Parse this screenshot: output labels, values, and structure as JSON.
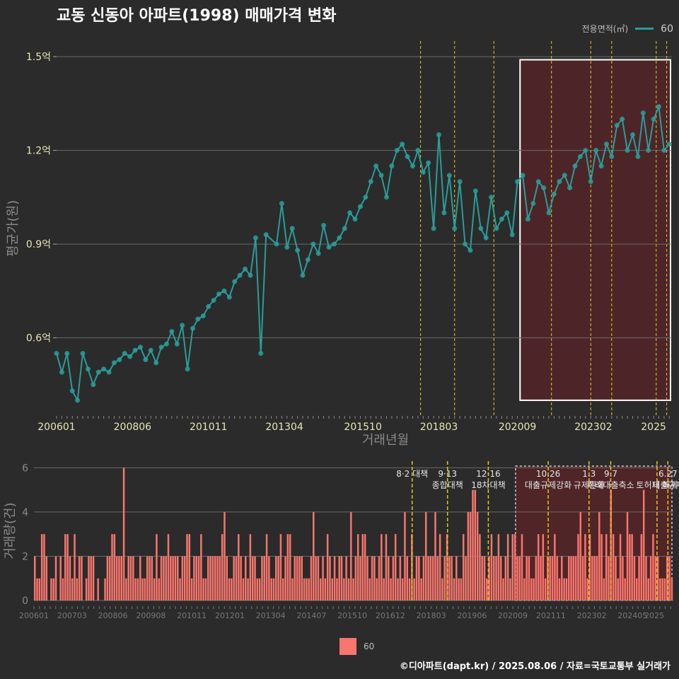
{
  "title": "교동 신동아 아파트(1998) 매매가격 변화",
  "legend_top": {
    "title": "전용면적(㎡)",
    "label": "60"
  },
  "legend_bottom": {
    "label": "60"
  },
  "caption": "©디아파트(dapt.kr) / 2025.08.06 / 자료=국토교통부 실거래가",
  "colors": {
    "background": "#2b2b2b",
    "line": "#2a9d9a",
    "bar": "#f8766d",
    "highlight": "#5a2428",
    "event_line": "#e6c619",
    "grid": "#6a6a6a"
  },
  "chart_data": [
    {
      "type": "line",
      "ylabel": "평균가(원)",
      "xlabel": "거래년월",
      "y_ticks": [
        {
          "v": 0.6,
          "label": "0.6억"
        },
        {
          "v": 0.9,
          "label": "0.9억"
        },
        {
          "v": 1.2,
          "label": "1.2억"
        },
        {
          "v": 1.5,
          "label": "1.5억"
        }
      ],
      "x_tick_labels": [
        "200601",
        "200806",
        "201011",
        "201304",
        "201510",
        "201803",
        "202009",
        "202302",
        "2025"
      ],
      "ylim": [
        0.35,
        1.55
      ],
      "xlim": [
        "2006-01",
        "2025-08"
      ],
      "highlight_period": {
        "start": "2020-10",
        "end": "2025-08",
        "y_min": 0.4,
        "y_max": 1.49
      },
      "event_dates": [
        "2017-08",
        "2018-09",
        "2019-12",
        "2021-10",
        "2023-01",
        "2023-09",
        "2025-02",
        "2025-06"
      ],
      "series": [
        {
          "name": "60",
          "points": [
            [
              "2006-01",
              0.55
            ],
            [
              "2006-03",
              0.49
            ],
            [
              "2006-05",
              0.55
            ],
            [
              "2006-07",
              0.43
            ],
            [
              "2006-09",
              0.4
            ],
            [
              "2006-11",
              0.55
            ],
            [
              "2007-01",
              0.5
            ],
            [
              "2007-03",
              0.45
            ],
            [
              "2007-05",
              0.49
            ],
            [
              "2007-07",
              0.5
            ],
            [
              "2007-09",
              0.49
            ],
            [
              "2007-11",
              0.52
            ],
            [
              "2008-01",
              0.53
            ],
            [
              "2008-03",
              0.55
            ],
            [
              "2008-05",
              0.54
            ],
            [
              "2008-07",
              0.56
            ],
            [
              "2008-09",
              0.57
            ],
            [
              "2008-11",
              0.53
            ],
            [
              "2009-01",
              0.56
            ],
            [
              "2009-03",
              0.52
            ],
            [
              "2009-05",
              0.57
            ],
            [
              "2009-07",
              0.58
            ],
            [
              "2009-09",
              0.62
            ],
            [
              "2009-11",
              0.58
            ],
            [
              "2010-01",
              0.64
            ],
            [
              "2010-03",
              0.5
            ],
            [
              "2010-05",
              0.63
            ],
            [
              "2010-07",
              0.66
            ],
            [
              "2010-09",
              0.67
            ],
            [
              "2010-11",
              0.7
            ],
            [
              "2011-01",
              0.72
            ],
            [
              "2011-03",
              0.74
            ],
            [
              "2011-05",
              0.75
            ],
            [
              "2011-07",
              0.73
            ],
            [
              "2011-09",
              0.78
            ],
            [
              "2011-11",
              0.8
            ],
            [
              "2012-01",
              0.82
            ],
            [
              "2012-03",
              0.8
            ],
            [
              "2012-05",
              0.92
            ],
            [
              "2012-07",
              0.55
            ],
            [
              "2012-09",
              0.93
            ],
            [
              "2013-01",
              0.9
            ],
            [
              "2013-03",
              1.03
            ],
            [
              "2013-05",
              0.89
            ],
            [
              "2013-07",
              0.95
            ],
            [
              "2013-09",
              0.88
            ],
            [
              "2013-11",
              0.8
            ],
            [
              "2014-01",
              0.85
            ],
            [
              "2014-03",
              0.9
            ],
            [
              "2014-05",
              0.87
            ],
            [
              "2014-07",
              0.96
            ],
            [
              "2014-09",
              0.89
            ],
            [
              "2014-11",
              0.9
            ],
            [
              "2015-01",
              0.92
            ],
            [
              "2015-03",
              0.95
            ],
            [
              "2015-05",
              1.0
            ],
            [
              "2015-07",
              0.98
            ],
            [
              "2015-09",
              1.02
            ],
            [
              "2015-11",
              1.05
            ],
            [
              "2016-01",
              1.1
            ],
            [
              "2016-03",
              1.15
            ],
            [
              "2016-05",
              1.12
            ],
            [
              "2016-07",
              1.05
            ],
            [
              "2016-09",
              1.15
            ],
            [
              "2016-11",
              1.2
            ],
            [
              "2017-01",
              1.22
            ],
            [
              "2017-03",
              1.18
            ],
            [
              "2017-05",
              1.15
            ],
            [
              "2017-07",
              1.2
            ],
            [
              "2017-09",
              1.13
            ],
            [
              "2017-11",
              1.16
            ],
            [
              "2018-01",
              0.95
            ],
            [
              "2018-03",
              1.25
            ],
            [
              "2018-05",
              1.0
            ],
            [
              "2018-07",
              1.12
            ],
            [
              "2018-09",
              0.95
            ],
            [
              "2018-11",
              1.1
            ],
            [
              "2019-01",
              0.9
            ],
            [
              "2019-03",
              0.88
            ],
            [
              "2019-05",
              1.07
            ],
            [
              "2019-07",
              0.95
            ],
            [
              "2019-09",
              0.92
            ],
            [
              "2019-11",
              1.05
            ],
            [
              "2020-01",
              0.95
            ],
            [
              "2020-03",
              0.98
            ],
            [
              "2020-05",
              1.0
            ],
            [
              "2020-07",
              0.93
            ],
            [
              "2020-09",
              1.1
            ],
            [
              "2020-11",
              1.12
            ],
            [
              "2021-01",
              0.98
            ],
            [
              "2021-03",
              1.03
            ],
            [
              "2021-05",
              1.1
            ],
            [
              "2021-07",
              1.08
            ],
            [
              "2021-09",
              1.0
            ],
            [
              "2021-11",
              1.06
            ],
            [
              "2022-01",
              1.1
            ],
            [
              "2022-03",
              1.12
            ],
            [
              "2022-05",
              1.08
            ],
            [
              "2022-07",
              1.15
            ],
            [
              "2022-09",
              1.18
            ],
            [
              "2022-11",
              1.2
            ],
            [
              "2023-01",
              1.1
            ],
            [
              "2023-03",
              1.2
            ],
            [
              "2023-05",
              1.15
            ],
            [
              "2023-07",
              1.22
            ],
            [
              "2023-09",
              1.18
            ],
            [
              "2023-11",
              1.28
            ],
            [
              "2024-01",
              1.3
            ],
            [
              "2024-03",
              1.2
            ],
            [
              "2024-05",
              1.25
            ],
            [
              "2024-07",
              1.18
            ],
            [
              "2024-09",
              1.32
            ],
            [
              "2024-11",
              1.2
            ],
            [
              "2025-01",
              1.3
            ],
            [
              "2025-03",
              1.34
            ],
            [
              "2025-05",
              1.2
            ],
            [
              "2025-07",
              1.22
            ]
          ]
        }
      ]
    },
    {
      "type": "bar",
      "ylabel": "거래량(건)",
      "y_ticks": [
        0,
        2,
        4,
        6
      ],
      "ylim": [
        0,
        6.3
      ],
      "x_tick_labels": [
        "200601",
        "200703",
        "200806",
        "200908",
        "201011",
        "201201",
        "201304",
        "201407",
        "201510",
        "201612",
        "201803",
        "201906",
        "202009",
        "202111",
        "202302",
        "202405",
        "2025"
      ],
      "highlight_period": {
        "start": "2020-10",
        "end": "2025-08"
      },
      "annotations": [
        {
          "date": "2017-08",
          "lines": [
            "8·2 대책"
          ]
        },
        {
          "date": "2018-09",
          "lines": [
            "9·13",
            "종합대책"
          ]
        },
        {
          "date": "2019-12",
          "lines": [
            "12·16",
            "18차대책"
          ]
        },
        {
          "date": "2021-10",
          "lines": [
            "10.26",
            "대출규제강화"
          ]
        },
        {
          "date": "2023-01",
          "lines": [
            "1.3",
            "규제완화"
          ]
        },
        {
          "date": "2023-09",
          "lines": [
            "9.7",
            "특례대출축소"
          ]
        },
        {
          "date": "2025-02",
          "lines": [
            "",
            "토허제 해제"
          ]
        },
        {
          "date": "2025-06",
          "lines": [
            "6.27",
            "대출규제"
          ]
        }
      ],
      "series": [
        {
          "name": "60",
          "values": [
            2,
            1,
            1,
            3,
            3,
            2,
            0,
            1,
            1,
            2,
            0,
            2,
            1,
            3,
            3,
            2,
            1,
            3,
            1,
            2,
            2,
            0,
            1,
            2,
            2,
            2,
            0,
            1,
            0,
            0,
            1,
            2,
            2,
            3,
            3,
            2,
            2,
            2,
            6,
            1,
            2,
            2,
            2,
            1,
            1,
            2,
            1,
            1,
            2,
            2,
            2,
            1,
            3,
            1,
            2,
            2,
            2,
            3,
            2,
            2,
            2,
            2,
            1,
            2,
            2,
            3,
            3,
            1,
            2,
            2,
            2,
            3,
            1,
            1,
            2,
            2,
            2,
            2,
            2,
            2,
            3,
            4,
            2,
            1,
            1,
            2,
            2,
            3,
            2,
            1,
            2,
            1,
            3,
            2,
            2,
            1,
            1,
            2,
            2,
            3,
            2,
            1,
            1,
            2,
            2,
            3,
            1,
            2,
            3,
            3,
            1,
            2,
            2,
            2,
            2,
            1,
            1,
            1,
            2,
            4,
            2,
            2,
            1,
            2,
            1,
            3,
            2,
            1,
            2,
            1,
            2,
            2,
            1,
            2,
            1,
            4,
            1,
            2,
            3,
            2,
            3,
            3,
            2,
            1,
            2,
            2,
            1,
            2,
            3,
            1,
            3,
            2,
            1,
            2,
            3,
            1,
            2,
            1,
            4,
            2,
            1,
            3,
            1,
            2,
            2,
            1,
            2,
            4,
            2,
            2,
            2,
            4,
            2,
            3,
            1,
            2,
            3,
            2,
            2,
            1,
            2,
            1,
            1,
            3,
            2,
            4,
            4,
            5,
            5,
            4,
            3,
            2,
            2,
            1,
            2,
            3,
            2,
            2,
            3,
            2,
            1,
            2,
            3,
            1,
            3,
            3,
            2,
            2,
            3,
            1,
            2,
            2,
            1,
            1,
            2,
            3,
            2,
            3,
            1,
            2,
            2,
            2,
            3,
            2,
            1,
            2,
            1,
            1,
            2,
            2,
            2,
            2,
            3,
            4,
            2,
            3,
            1,
            3,
            2,
            2,
            2,
            4,
            3,
            1,
            3,
            2,
            5,
            3,
            2,
            1,
            3,
            2,
            1,
            4,
            3,
            3,
            2,
            1,
            2,
            3,
            5,
            2,
            1,
            2,
            3,
            2,
            2,
            1,
            1,
            1,
            2,
            2,
            1
          ]
        }
      ]
    }
  ]
}
